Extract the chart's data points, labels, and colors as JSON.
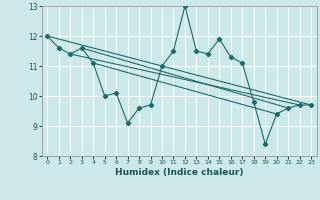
{
  "xlabel": "Humidex (Indice chaleur)",
  "xlim": [
    -0.5,
    23.5
  ],
  "ylim": [
    8,
    13
  ],
  "yticks": [
    8,
    9,
    10,
    11,
    12,
    13
  ],
  "xticks": [
    0,
    1,
    2,
    3,
    4,
    5,
    6,
    7,
    8,
    9,
    10,
    11,
    12,
    13,
    14,
    15,
    16,
    17,
    18,
    19,
    20,
    21,
    22,
    23
  ],
  "bg_color": "#cde8e8",
  "grid_color": "#b0d8d8",
  "line_color": "#1a6b6b",
  "lines": [
    [
      0,
      12.0
    ],
    [
      1,
      11.6
    ],
    [
      2,
      11.4
    ],
    [
      3,
      11.6
    ],
    [
      4,
      11.1
    ],
    [
      5,
      10.0
    ],
    [
      6,
      10.1
    ],
    [
      7,
      9.1
    ],
    [
      8,
      9.6
    ],
    [
      9,
      9.7
    ],
    [
      10,
      11.0
    ],
    [
      11,
      11.5
    ],
    [
      12,
      13.0
    ],
    [
      13,
      11.5
    ],
    [
      14,
      11.4
    ],
    [
      15,
      11.9
    ],
    [
      16,
      11.3
    ],
    [
      17,
      11.1
    ],
    [
      18,
      9.8
    ],
    [
      19,
      8.4
    ],
    [
      20,
      9.4
    ],
    [
      21,
      9.6
    ],
    [
      22,
      9.7
    ],
    [
      23,
      9.7
    ]
  ],
  "extra_lines": [
    [
      [
        0,
        12.0
      ],
      [
        23,
        9.7
      ]
    ],
    [
      [
        2,
        11.4
      ],
      [
        22,
        9.7
      ]
    ],
    [
      [
        3,
        11.6
      ],
      [
        21,
        9.6
      ]
    ],
    [
      [
        4,
        11.1
      ],
      [
        20,
        9.4
      ]
    ]
  ]
}
